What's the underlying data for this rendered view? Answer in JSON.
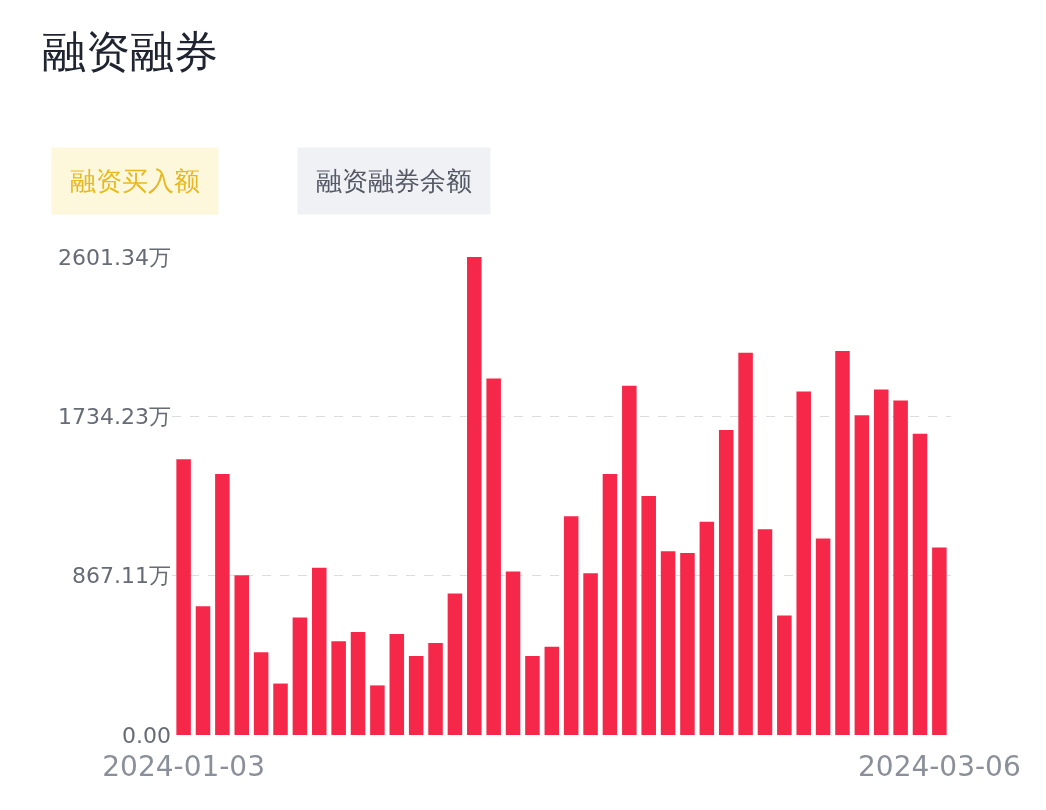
{
  "chart_data": {
    "type": "bar",
    "title": "融资融券",
    "annotations": [
      "融资买入额",
      "融资融券余额"
    ],
    "categories": [
      "2024-01-03",
      null,
      null,
      null,
      null,
      null,
      null,
      null,
      null,
      null,
      null,
      null,
      null,
      null,
      null,
      null,
      null,
      null,
      null,
      null,
      null,
      null,
      null,
      null,
      null,
      null,
      null,
      null,
      null,
      null,
      null,
      null,
      null,
      null,
      null,
      null,
      null,
      null,
      null,
      "2024-03-06"
    ],
    "values": [
      1500,
      700,
      1420,
      870,
      450,
      280,
      640,
      910,
      510,
      560,
      270,
      550,
      430,
      500,
      770,
      2601.34,
      1940,
      890,
      430,
      480,
      1190,
      880,
      1420,
      1900,
      1300,
      1000,
      990,
      1160,
      1660,
      2080,
      1120,
      650,
      1870,
      1070,
      2090,
      1740,
      1880,
      1820,
      1640,
      1020
    ],
    "color": "#f5284a",
    "ylim": [
      0,
      2601.34
    ],
    "yticks": [
      {
        "value": 0,
        "label": "0.00"
      },
      {
        "value": 867.11,
        "label": "867.11万"
      },
      {
        "value": 1734.23,
        "label": "1734.23万"
      },
      {
        "value": 2601.34,
        "label": "2601.34万"
      }
    ],
    "grid": "y"
  }
}
